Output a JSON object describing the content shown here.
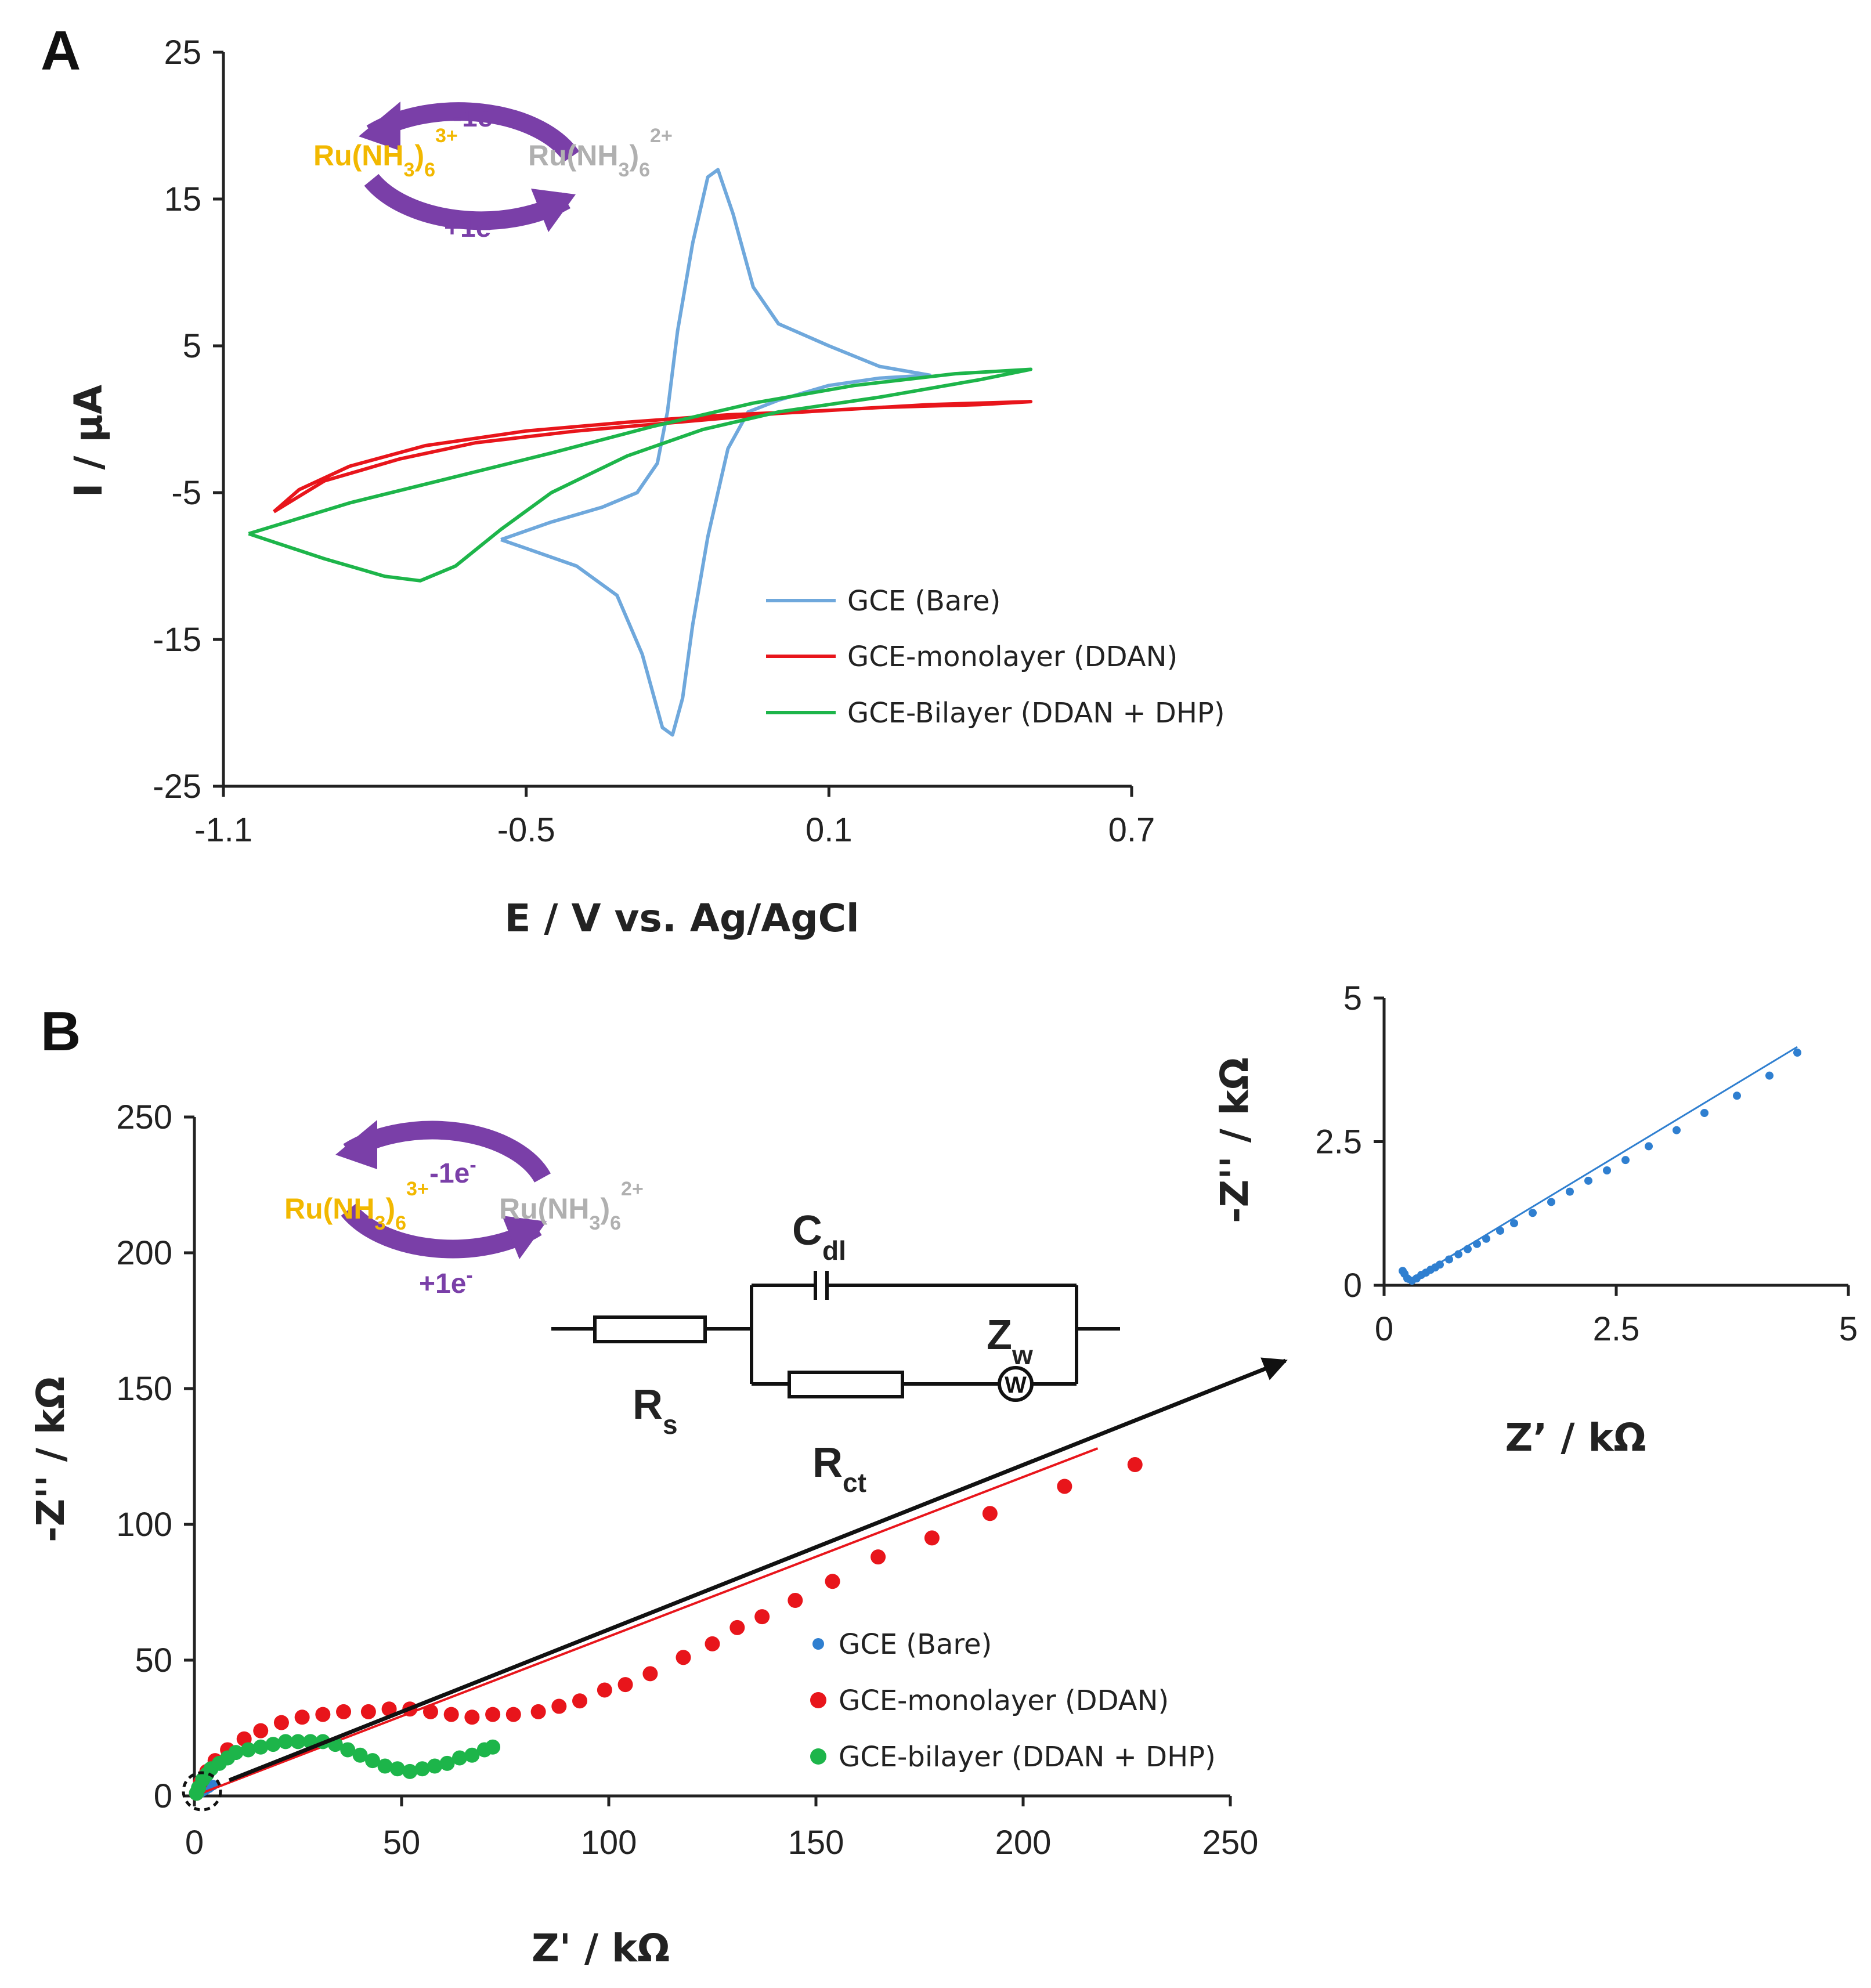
{
  "panel_a": {
    "label": "A",
    "chart_data": {
      "type": "line",
      "xlabel": "E / V vs. Ag/AgCl",
      "ylabel": "I / µA",
      "xlim": [
        -1.1,
        0.7
      ],
      "ylim": [
        -25,
        25
      ],
      "xticks": [
        "-1.1",
        "-0.5",
        "0.1",
        "0.7"
      ],
      "yticks": [
        "25",
        "15",
        "5",
        "-5",
        "-15",
        "-25"
      ],
      "legend_position": "lower-right",
      "series": [
        {
          "name": "GCE (Bare)",
          "color": "#6fa8dc",
          "points": [
            [
              -0.55,
              -8.2
            ],
            [
              -0.45,
              -7.0
            ],
            [
              -0.35,
              -6.0
            ],
            [
              -0.28,
              -5.0
            ],
            [
              -0.24,
              -3.0
            ],
            [
              -0.22,
              0.5
            ],
            [
              -0.2,
              6.0
            ],
            [
              -0.17,
              12.0
            ],
            [
              -0.14,
              16.5
            ],
            [
              -0.12,
              17.0
            ],
            [
              -0.09,
              14.0
            ],
            [
              -0.05,
              9.0
            ],
            [
              0.0,
              6.5
            ],
            [
              0.1,
              5.0
            ],
            [
              0.2,
              3.6
            ],
            [
              0.3,
              3.0
            ],
            [
              0.2,
              2.8
            ],
            [
              0.1,
              2.3
            ],
            [
              0.0,
              1.3
            ],
            [
              -0.06,
              0.5
            ],
            [
              -0.1,
              -2.0
            ],
            [
              -0.14,
              -8.0
            ],
            [
              -0.17,
              -14.0
            ],
            [
              -0.19,
              -19.0
            ],
            [
              -0.21,
              -21.5
            ],
            [
              -0.23,
              -21.0
            ],
            [
              -0.27,
              -16.0
            ],
            [
              -0.32,
              -12.0
            ],
            [
              -0.4,
              -10.0
            ],
            [
              -0.5,
              -8.8
            ],
            [
              -0.55,
              -8.2
            ]
          ]
        },
        {
          "name": "GCE-monolayer (DDAN)",
          "color": "#e8151b",
          "points": [
            [
              -1.0,
              -6.3
            ],
            [
              -0.9,
              -4.2
            ],
            [
              -0.75,
              -2.7
            ],
            [
              -0.6,
              -1.6
            ],
            [
              -0.4,
              -0.8
            ],
            [
              -0.2,
              -0.2
            ],
            [
              0.0,
              0.4
            ],
            [
              0.2,
              0.8
            ],
            [
              0.4,
              1.0
            ],
            [
              0.5,
              1.2
            ],
            [
              0.3,
              1.0
            ],
            [
              0.1,
              0.6
            ],
            [
              -0.1,
              0.3
            ],
            [
              -0.3,
              -0.2
            ],
            [
              -0.5,
              -0.8
            ],
            [
              -0.7,
              -1.8
            ],
            [
              -0.85,
              -3.2
            ],
            [
              -0.95,
              -4.8
            ],
            [
              -1.0,
              -6.3
            ]
          ]
        },
        {
          "name": "GCE-Bilayer (DDAN + DHP)",
          "color": "#1db54a",
          "points": [
            [
              -1.05,
              -7.8
            ],
            [
              -0.9,
              -9.5
            ],
            [
              -0.78,
              -10.7
            ],
            [
              -0.71,
              -11.0
            ],
            [
              -0.64,
              -10.0
            ],
            [
              -0.55,
              -7.5
            ],
            [
              -0.45,
              -5.0
            ],
            [
              -0.3,
              -2.5
            ],
            [
              -0.15,
              -0.7
            ],
            [
              0.0,
              0.5
            ],
            [
              0.2,
              1.5
            ],
            [
              0.4,
              2.7
            ],
            [
              0.5,
              3.4
            ],
            [
              0.35,
              3.1
            ],
            [
              0.15,
              2.3
            ],
            [
              -0.05,
              1.1
            ],
            [
              -0.25,
              -0.5
            ],
            [
              -0.45,
              -2.3
            ],
            [
              -0.65,
              -4.0
            ],
            [
              -0.85,
              -5.7
            ],
            [
              -1.05,
              -7.8
            ]
          ]
        }
      ]
    },
    "scheme": {
      "left": "Ru(NH",
      "left_tail": ")",
      "left_sub": "3",
      "left_sub2": "6",
      "left_sup": "3+",
      "right": "Ru(NH",
      "right_tail": ")",
      "right_sub": "3",
      "right_sub2": "6",
      "right_sup": "2+",
      "top": "-1e",
      "top_sup": "-",
      "bottom": "+1e",
      "bottom_sup": "-"
    }
  },
  "panel_b": {
    "label": "B",
    "chart_data": {
      "type": "scatter",
      "xlabel": "Z' / kΩ",
      "ylabel": "-Z'' / kΩ",
      "xlim": [
        0,
        250
      ],
      "ylim": [
        0,
        250
      ],
      "xticks": [
        "0",
        "50",
        "100",
        "150",
        "200",
        "250"
      ],
      "yticks": [
        "250",
        "200",
        "150",
        "100",
        "50",
        "0"
      ],
      "legend_position": "lower-right",
      "series": [
        {
          "name": "GCE (Bare)",
          "color": "#2f7fd0",
          "points": [
            [
              0.3,
              0.2
            ],
            [
              0.6,
              0.4
            ],
            [
              1.0,
              0.8
            ],
            [
              1.5,
              1.2
            ],
            [
              2.0,
              1.7
            ],
            [
              2.5,
              2.1
            ],
            [
              3.0,
              2.6
            ],
            [
              3.5,
              3.0
            ],
            [
              4.0,
              3.6
            ],
            [
              4.5,
              4.0
            ]
          ]
        },
        {
          "name": "GCE-monolayer (DDAN)",
          "color": "#e8151b",
          "points": [
            [
              0.5,
              1
            ],
            [
              1.5,
              5
            ],
            [
              3,
              9
            ],
            [
              5,
              13
            ],
            [
              8,
              17
            ],
            [
              12,
              21
            ],
            [
              16,
              24
            ],
            [
              21,
              27
            ],
            [
              26,
              29
            ],
            [
              31,
              30
            ],
            [
              36,
              31
            ],
            [
              42,
              31
            ],
            [
              47,
              32
            ],
            [
              52,
              32
            ],
            [
              57,
              31
            ],
            [
              62,
              30
            ],
            [
              67,
              29
            ],
            [
              72,
              30
            ],
            [
              77,
              30
            ],
            [
              83,
              31
            ],
            [
              88,
              33
            ],
            [
              93,
              35
            ],
            [
              99,
              39
            ],
            [
              104,
              41
            ],
            [
              110,
              45
            ],
            [
              118,
              51
            ],
            [
              125,
              56
            ],
            [
              131,
              62
            ],
            [
              137,
              66
            ],
            [
              145,
              72
            ],
            [
              154,
              79
            ],
            [
              165,
              88
            ],
            [
              178,
              95
            ],
            [
              192,
              104
            ],
            [
              210,
              114
            ],
            [
              227,
              122
            ]
          ],
          "fit_line": [
            [
              0,
              0
            ],
            [
              218,
              128
            ]
          ]
        },
        {
          "name": "GCE-bilayer (DDAN + DHP)",
          "color": "#1db54a",
          "points": [
            [
              0.5,
              1
            ],
            [
              1,
              3
            ],
            [
              2,
              6
            ],
            [
              3,
              8
            ],
            [
              4,
              10
            ],
            [
              6,
              12
            ],
            [
              8,
              14
            ],
            [
              10,
              16
            ],
            [
              13,
              17
            ],
            [
              16,
              18
            ],
            [
              19,
              19
            ],
            [
              22,
              20
            ],
            [
              25,
              20
            ],
            [
              28,
              20
            ],
            [
              31,
              20
            ],
            [
              34,
              19
            ],
            [
              37,
              17
            ],
            [
              40,
              15
            ],
            [
              43,
              13
            ],
            [
              46,
              11
            ],
            [
              49,
              10
            ],
            [
              52,
              9
            ],
            [
              55,
              10
            ],
            [
              58,
              11
            ],
            [
              61,
              12
            ],
            [
              64,
              14
            ],
            [
              67,
              15
            ],
            [
              70,
              17
            ],
            [
              72,
              18
            ]
          ]
        }
      ]
    },
    "inset": {
      "chart_data": {
        "type": "scatter",
        "xlabel": "Z’ / kΩ",
        "ylabel": "-Z'' / kΩ",
        "xlim": [
          0,
          5
        ],
        "ylim": [
          0,
          5
        ],
        "xticks": [
          "0",
          "2.5",
          "5"
        ],
        "yticks": [
          "5",
          "2.5",
          "0"
        ],
        "series": [
          {
            "name": "GCE (Bare)",
            "color": "#2f7fd0",
            "points": [
              [
                0.2,
                0.25
              ],
              [
                0.22,
                0.2
              ],
              [
                0.25,
                0.12
              ],
              [
                0.3,
                0.08
              ],
              [
                0.35,
                0.12
              ],
              [
                0.4,
                0.18
              ],
              [
                0.45,
                0.22
              ],
              [
                0.5,
                0.27
              ],
              [
                0.55,
                0.31
              ],
              [
                0.6,
                0.36
              ],
              [
                0.7,
                0.45
              ],
              [
                0.8,
                0.54
              ],
              [
                0.9,
                0.63
              ],
              [
                1.0,
                0.72
              ],
              [
                1.1,
                0.81
              ],
              [
                1.25,
                0.95
              ],
              [
                1.4,
                1.08
              ],
              [
                1.6,
                1.26
              ],
              [
                1.8,
                1.45
              ],
              [
                2.0,
                1.63
              ],
              [
                2.2,
                1.82
              ],
              [
                2.4,
                2.0
              ],
              [
                2.6,
                2.18
              ],
              [
                2.85,
                2.42
              ],
              [
                3.15,
                2.7
              ],
              [
                3.45,
                3.0
              ],
              [
                3.8,
                3.3
              ],
              [
                4.15,
                3.65
              ],
              [
                4.45,
                4.05
              ]
            ],
            "fit_line": [
              [
                0.25,
                0.05
              ],
              [
                4.45,
                4.15
              ]
            ]
          }
        ]
      }
    },
    "scheme": {
      "left": "Ru(NH",
      "left_tail": ")",
      "left_sub": "3",
      "left_sub2": "6",
      "left_sup": "3+",
      "right": "Ru(NH",
      "right_tail": ")",
      "right_sub": "3",
      "right_sub2": "6",
      "right_sup": "2+",
      "top": "-1e",
      "top_sup": "-",
      "bottom": "+1e",
      "bottom_sup": "-"
    },
    "circuit": {
      "cdl": "C",
      "cdl_sub": "dl",
      "zw": "Z",
      "zw_sub": "w",
      "rs": "R",
      "rs_sub": "s",
      "rct": "R",
      "rct_sub": "ct",
      "warburg_symbol": "W"
    }
  },
  "colors": {
    "axis": "#222222",
    "arrow": "#7a3fa8",
    "yellow": "#f2b800",
    "grey": "#b0b0b0"
  }
}
